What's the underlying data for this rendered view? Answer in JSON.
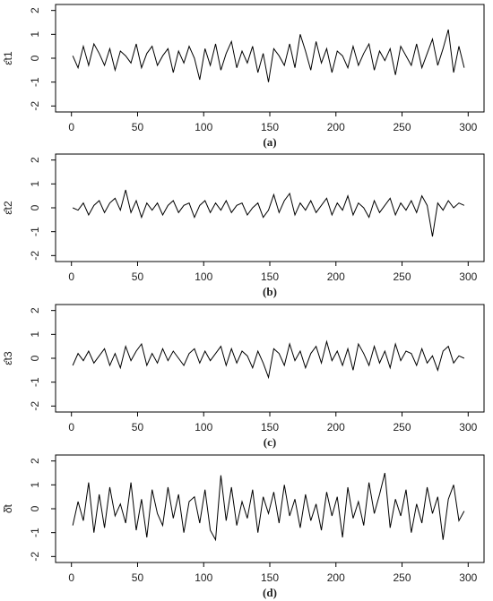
{
  "chart_data": [
    {
      "type": "line",
      "caption": "(a)",
      "ylabel": "ε̂t1",
      "color": "#000000",
      "xlim": [
        -12,
        312
      ],
      "ylim": [
        -2.25,
        2.25
      ],
      "xticks": [
        0,
        50,
        100,
        150,
        200,
        250,
        300
      ],
      "yticks": [
        -2,
        -1,
        0,
        1,
        2
      ],
      "x": [
        1,
        5,
        9,
        13,
        17,
        21,
        25,
        29,
        33,
        37,
        41,
        45,
        49,
        53,
        57,
        61,
        65,
        69,
        73,
        77,
        81,
        85,
        89,
        93,
        97,
        101,
        105,
        109,
        113,
        117,
        121,
        125,
        129,
        133,
        137,
        141,
        145,
        149,
        153,
        157,
        161,
        165,
        169,
        173,
        177,
        181,
        185,
        189,
        193,
        197,
        201,
        205,
        209,
        213,
        217,
        221,
        225,
        229,
        233,
        237,
        241,
        245,
        249,
        253,
        257,
        261,
        265,
        269,
        273,
        277,
        281,
        285,
        289,
        293,
        297
      ],
      "values": [
        0.1,
        -0.4,
        0.5,
        -0.3,
        0.6,
        0.2,
        -0.3,
        0.4,
        -0.5,
        0.3,
        0.1,
        -0.2,
        0.6,
        -0.4,
        0.2,
        0.5,
        -0.3,
        0.1,
        0.4,
        -0.6,
        0.3,
        -0.2,
        0.5,
        0.0,
        -0.9,
        0.4,
        -0.3,
        0.6,
        -0.5,
        0.2,
        0.7,
        -0.4,
        0.3,
        -0.2,
        0.5,
        -0.6,
        0.2,
        -1.0,
        0.4,
        0.1,
        -0.3,
        0.6,
        -0.4,
        1.0,
        0.3,
        -0.5,
        0.7,
        -0.2,
        0.4,
        -0.6,
        0.3,
        0.1,
        -0.4,
        0.5,
        -0.3,
        0.2,
        0.6,
        -0.5,
        0.3,
        -0.1,
        0.4,
        -0.7,
        0.5,
        0.1,
        -0.3,
        0.6,
        -0.4,
        0.2,
        0.8,
        -0.3,
        0.4,
        1.2,
        -0.6,
        0.5,
        -0.4
      ]
    },
    {
      "type": "line",
      "caption": "(b)",
      "ylabel": "ε̂t2",
      "color": "#000000",
      "xlim": [
        -12,
        312
      ],
      "ylim": [
        -2.25,
        2.25
      ],
      "xticks": [
        0,
        50,
        100,
        150,
        200,
        250,
        300
      ],
      "yticks": [
        -2,
        -1,
        0,
        1,
        2
      ],
      "x": [
        1,
        5,
        9,
        13,
        17,
        21,
        25,
        29,
        33,
        37,
        41,
        45,
        49,
        53,
        57,
        61,
        65,
        69,
        73,
        77,
        81,
        85,
        89,
        93,
        97,
        101,
        105,
        109,
        113,
        117,
        121,
        125,
        129,
        133,
        137,
        141,
        145,
        149,
        153,
        157,
        161,
        165,
        169,
        173,
        177,
        181,
        185,
        189,
        193,
        197,
        201,
        205,
        209,
        213,
        217,
        221,
        225,
        229,
        233,
        237,
        241,
        245,
        249,
        253,
        257,
        261,
        265,
        269,
        273,
        277,
        281,
        285,
        289,
        293,
        297
      ],
      "values": [
        0.0,
        -0.1,
        0.2,
        -0.3,
        0.1,
        0.3,
        -0.2,
        0.2,
        0.4,
        -0.1,
        0.75,
        -0.2,
        0.3,
        -0.4,
        0.2,
        -0.1,
        0.2,
        -0.3,
        0.1,
        0.3,
        -0.2,
        0.1,
        0.2,
        -0.4,
        0.1,
        0.3,
        -0.2,
        0.2,
        -0.1,
        0.3,
        -0.2,
        0.1,
        0.2,
        -0.3,
        0.0,
        0.2,
        -0.4,
        -0.1,
        0.55,
        -0.2,
        0.3,
        0.6,
        -0.3,
        0.2,
        -0.1,
        0.3,
        -0.2,
        0.1,
        0.4,
        -0.3,
        0.2,
        -0.1,
        0.5,
        -0.3,
        0.2,
        0.0,
        -0.4,
        0.3,
        -0.2,
        0.1,
        0.4,
        -0.3,
        0.2,
        -0.1,
        0.3,
        -0.2,
        0.5,
        0.1,
        -1.2,
        0.2,
        -0.1,
        0.3,
        0.0,
        0.2,
        0.1
      ]
    },
    {
      "type": "line",
      "caption": "(c)",
      "ylabel": "ε̂t3",
      "color": "#000000",
      "xlim": [
        -12,
        312
      ],
      "ylim": [
        -2.25,
        2.25
      ],
      "xticks": [
        0,
        50,
        100,
        150,
        200,
        250,
        300
      ],
      "yticks": [
        -2,
        -1,
        0,
        1,
        2
      ],
      "x": [
        1,
        5,
        9,
        13,
        17,
        21,
        25,
        29,
        33,
        37,
        41,
        45,
        49,
        53,
        57,
        61,
        65,
        69,
        73,
        77,
        81,
        85,
        89,
        93,
        97,
        101,
        105,
        109,
        113,
        117,
        121,
        125,
        129,
        133,
        137,
        141,
        145,
        149,
        153,
        157,
        161,
        165,
        169,
        173,
        177,
        181,
        185,
        189,
        193,
        197,
        201,
        205,
        209,
        213,
        217,
        221,
        225,
        229,
        233,
        237,
        241,
        245,
        249,
        253,
        257,
        261,
        265,
        269,
        273,
        277,
        281,
        285,
        289,
        293,
        297
      ],
      "values": [
        -0.3,
        0.2,
        -0.1,
        0.3,
        -0.2,
        0.1,
        0.4,
        -0.3,
        0.2,
        -0.4,
        0.5,
        -0.1,
        0.3,
        0.6,
        -0.3,
        0.2,
        -0.2,
        0.4,
        -0.1,
        0.3,
        0.0,
        -0.3,
        0.2,
        0.4,
        -0.2,
        0.3,
        -0.1,
        0.2,
        0.5,
        -0.3,
        0.4,
        -0.2,
        0.3,
        0.1,
        -0.4,
        0.3,
        -0.2,
        -0.8,
        0.4,
        0.2,
        -0.3,
        0.6,
        -0.1,
        0.3,
        -0.4,
        0.2,
        0.5,
        -0.2,
        0.7,
        -0.1,
        0.3,
        -0.3,
        0.4,
        -0.5,
        0.6,
        0.2,
        -0.3,
        0.5,
        -0.2,
        0.3,
        -0.4,
        0.6,
        -0.1,
        0.3,
        0.2,
        -0.3,
        0.4,
        -0.2,
        0.1,
        -0.5,
        0.3,
        0.5,
        -0.2,
        0.1,
        0.0
      ]
    },
    {
      "type": "line",
      "caption": "(d)",
      "ylabel": "δ̂t",
      "color": "#000000",
      "xlim": [
        -12,
        312
      ],
      "ylim": [
        -2.25,
        2.25
      ],
      "xticks": [
        0,
        50,
        100,
        150,
        200,
        250,
        300
      ],
      "yticks": [
        -2,
        -1,
        0,
        1,
        2
      ],
      "x": [
        1,
        5,
        9,
        13,
        17,
        21,
        25,
        29,
        33,
        37,
        41,
        45,
        49,
        53,
        57,
        61,
        65,
        69,
        73,
        77,
        81,
        85,
        89,
        93,
        97,
        101,
        105,
        109,
        113,
        117,
        121,
        125,
        129,
        133,
        137,
        141,
        145,
        149,
        153,
        157,
        161,
        165,
        169,
        173,
        177,
        181,
        185,
        189,
        193,
        197,
        201,
        205,
        209,
        213,
        217,
        221,
        225,
        229,
        233,
        237,
        241,
        245,
        249,
        253,
        257,
        261,
        265,
        269,
        273,
        277,
        281,
        285,
        289,
        293,
        297
      ],
      "values": [
        -0.7,
        0.3,
        -0.5,
        1.1,
        -1.0,
        0.6,
        -0.8,
        0.9,
        -0.3,
        0.2,
        -0.6,
        1.1,
        -0.9,
        0.4,
        -1.2,
        0.8,
        -0.2,
        -0.7,
        0.9,
        -0.4,
        0.6,
        -1.0,
        0.3,
        0.5,
        -0.6,
        0.8,
        -0.9,
        -1.3,
        1.4,
        -0.5,
        0.9,
        -0.7,
        0.3,
        -0.4,
        0.8,
        -1.0,
        0.5,
        -0.2,
        0.7,
        -0.6,
        1.0,
        -0.3,
        0.4,
        -0.8,
        0.6,
        -0.5,
        0.2,
        -0.9,
        0.7,
        -0.3,
        0.5,
        -1.2,
        0.9,
        -0.4,
        0.3,
        -0.7,
        1.1,
        -0.2,
        0.6,
        1.5,
        -0.8,
        0.4,
        -0.3,
        0.8,
        -1.0,
        0.2,
        -0.6,
        0.9,
        -0.2,
        0.5,
        -1.3,
        0.4,
        1.0,
        -0.5,
        -0.1
      ]
    }
  ]
}
